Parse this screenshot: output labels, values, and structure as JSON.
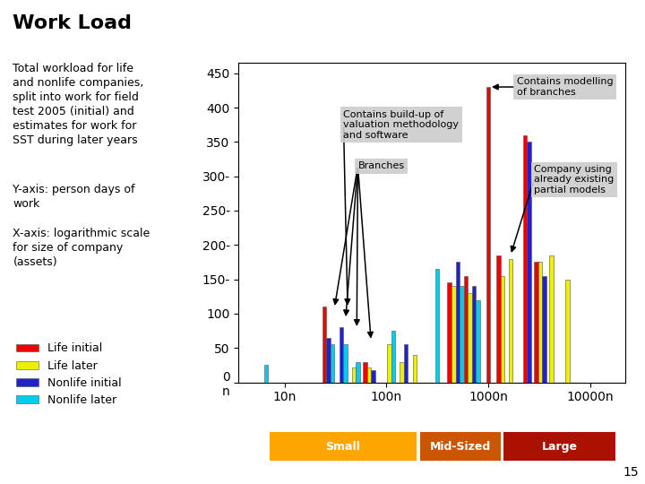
{
  "chart_data": {
    "type": "bar",
    "title": "Work Load",
    "subtitle": "Total workload for life\nand nonlife companies,\nsplit into work for field\ntest 2005 (initial) and\nestimates for work for\nSST during later years",
    "ylabel": "Y-axis: person days of\nwork",
    "xlabel": "X-axis: logarithmic scale\nfor size of company\n(assets)",
    "page_number": "15",
    "x": [
      0.82,
      1.43,
      1.58,
      1.7,
      1.83,
      2.05,
      2.17,
      2.28,
      2.5,
      2.68,
      2.84,
      3.0,
      3.12,
      3.22,
      3.38,
      3.51,
      3.62,
      3.78
    ],
    "series": [
      {
        "name": "Life initial",
        "color": "#EE0000",
        "values": [
          null,
          110,
          null,
          null,
          30,
          null,
          null,
          null,
          null,
          145,
          155,
          430,
          185,
          null,
          360,
          175,
          null,
          null
        ]
      },
      {
        "name": "Life later",
        "color": "#EEEE00",
        "values": [
          null,
          null,
          null,
          22,
          22,
          55,
          30,
          40,
          null,
          140,
          130,
          null,
          155,
          180,
          null,
          175,
          185,
          150
        ]
      },
      {
        "name": "Nonlife initial",
        "color": "#2222CC",
        "values": [
          null,
          65,
          80,
          null,
          18,
          null,
          55,
          null,
          null,
          175,
          140,
          null,
          null,
          null,
          350,
          155,
          null,
          null
        ]
      },
      {
        "name": "Nonlife later",
        "color": "#00CCEE",
        "values": [
          25,
          55,
          55,
          30,
          null,
          75,
          null,
          null,
          165,
          140,
          120,
          null,
          null,
          null,
          null,
          null,
          null,
          null
        ]
      }
    ],
    "xlim": [
      0.55,
      4.35
    ],
    "xticks": [
      {
        "value": 1.0,
        "label": "10n"
      },
      {
        "value": 2.0,
        "label": "100n"
      },
      {
        "value": 3.0,
        "label": "1000n"
      },
      {
        "value": 4.0,
        "label": "10000n"
      }
    ],
    "ylim": [
      0,
      465
    ],
    "yticks": [
      {
        "value": 0,
        "label": "0\nn"
      },
      50,
      100,
      {
        "value": 150,
        "label": "150-"
      },
      {
        "value": 200,
        "label": "200-"
      },
      {
        "value": 250,
        "label": "250-"
      },
      {
        "value": 300,
        "label": "300-"
      },
      350,
      400,
      450
    ],
    "grid": false,
    "legend": "lower left",
    "annotations": [
      {
        "text": "Contains build-up of\nvaluation methodology\nand software",
        "text_x": 1.58,
        "text_y": 375,
        "targets": [
          [
            1.62,
            108
          ]
        ]
      },
      {
        "text": "Contains modelling\nof branches",
        "text_x": 3.28,
        "text_y": 430,
        "targets": [
          [
            3.01,
            430
          ]
        ]
      },
      {
        "text": "Company using\nalready existing\npartial models",
        "text_x": 3.45,
        "text_y": 295,
        "targets": [
          [
            3.22,
            185
          ]
        ]
      },
      {
        "text": "Branches",
        "text_x": 1.72,
        "text_y": 315,
        "targets": [
          [
            1.49,
            108
          ],
          [
            1.6,
            92
          ],
          [
            1.71,
            78
          ],
          [
            1.85,
            60
          ]
        ]
      }
    ],
    "ranges": [
      {
        "label": "Small",
        "x0": 0.85,
        "x1": 2.3,
        "color": "#FFA500"
      },
      {
        "label": "Mid-Sized",
        "x0": 2.33,
        "x1": 3.12,
        "color": "#CC5500"
      },
      {
        "label": "Large",
        "x0": 3.15,
        "x1": 4.25,
        "color": "#AA1100"
      }
    ]
  }
}
